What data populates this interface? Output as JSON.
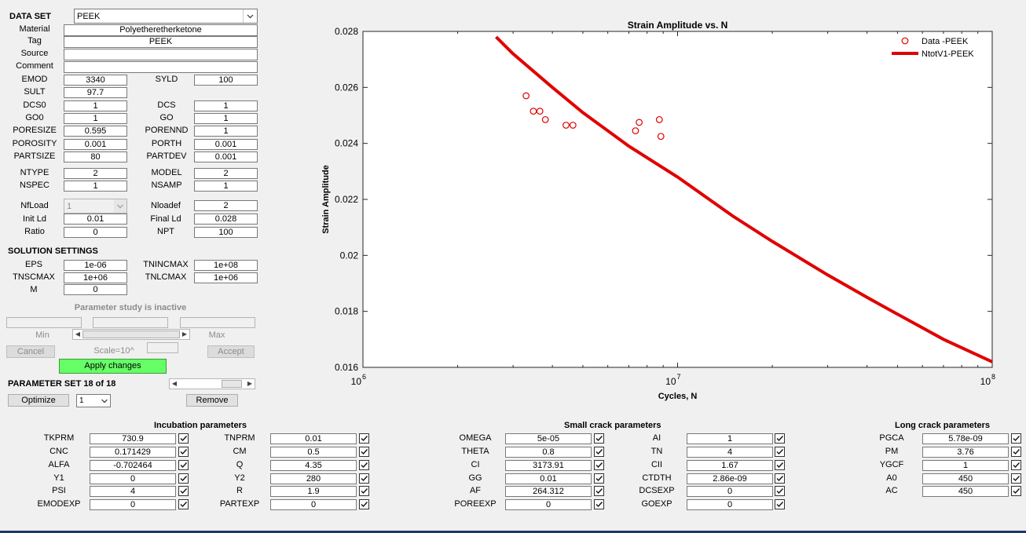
{
  "dataset": {
    "label": "DATA SET",
    "value": "PEEK"
  },
  "material": {
    "rows": [
      {
        "label": "Material",
        "value": "Polyetheretherketone"
      },
      {
        "label": "Tag",
        "value": "PEEK"
      },
      {
        "label": "Source",
        "value": ""
      },
      {
        "label": "Comment",
        "value": ""
      }
    ]
  },
  "props": {
    "left": [
      {
        "label": "EMOD",
        "value": "3340"
      },
      {
        "label": "SULT",
        "value": "97.7"
      },
      {
        "label": "DCS0",
        "value": "1"
      },
      {
        "label": "GO0",
        "value": "1"
      },
      {
        "label": "PORESIZE",
        "value": "0.595"
      },
      {
        "label": "POROSITY",
        "value": "0.001"
      },
      {
        "label": "PARTSIZE",
        "value": "80"
      },
      {
        "label": "NTYPE",
        "value": "2"
      },
      {
        "label": "NSPEC",
        "value": "1"
      }
    ],
    "right": [
      {
        "label": "SYLD",
        "value": "100"
      },
      {
        "label": "DCS",
        "value": "1"
      },
      {
        "label": "GO",
        "value": "1"
      },
      {
        "label": "PORENND",
        "value": "1"
      },
      {
        "label": "PORTH",
        "value": "0.001"
      },
      {
        "label": "PARTDEV",
        "value": "0.001"
      },
      {
        "label": "MODEL",
        "value": "2"
      },
      {
        "label": "NSAMP",
        "value": "1"
      }
    ]
  },
  "load": {
    "nfload_label": "NfLoad",
    "nfload_value": "1",
    "nloadef_label": "Nloadef",
    "nloadef_value": "2",
    "initld_label": "Init Ld",
    "initld_value": "0.01",
    "finalld_label": "Final Ld",
    "finalld_value": "0.028",
    "ratio_label": "Ratio",
    "ratio_value": "0",
    "npt_label": "NPT",
    "npt_value": "100"
  },
  "solution": {
    "title": "SOLUTION SETTINGS",
    "eps_label": "EPS",
    "eps_value": "1e-06",
    "tnincmax_label": "TNINCMAX",
    "tnincmax_value": "1e+08",
    "tnscmax_label": "TNSCMAX",
    "tnscmax_value": "1e+06",
    "tnlcmax_label": "TNLCMAX",
    "tnlcmax_value": "1e+06",
    "m_label": "M",
    "m_value": "0"
  },
  "param_study": {
    "status": "Parameter study is inactive",
    "min_label": "Min",
    "max_label": "Max",
    "cancel": "Cancel",
    "scale": "Scale=10^",
    "accept": "Accept",
    "apply": "Apply changes"
  },
  "param_set": {
    "title": "PARAMETER SET 18 of 18",
    "optimize": "Optimize",
    "select_value": "1",
    "remove": "Remove"
  },
  "incubation": {
    "title": "Incubation parameters",
    "left": [
      {
        "label": "TKPRM",
        "value": "730.9"
      },
      {
        "label": "CNC",
        "value": "0.171429"
      },
      {
        "label": "ALFA",
        "value": "-0.702464"
      },
      {
        "label": "Y1",
        "value": "0"
      },
      {
        "label": "PSI",
        "value": "4"
      },
      {
        "label": "EMODEXP",
        "value": "0"
      }
    ],
    "right": [
      {
        "label": "TNPRM",
        "value": "0.01"
      },
      {
        "label": "CM",
        "value": "0.5"
      },
      {
        "label": "Q",
        "value": "4.35"
      },
      {
        "label": "Y2",
        "value": "280"
      },
      {
        "label": "R",
        "value": "1.9"
      },
      {
        "label": "PARTEXP",
        "value": "0"
      }
    ]
  },
  "small_crack": {
    "title": "Small crack parameters",
    "left": [
      {
        "label": "OMEGA",
        "value": "5e-05"
      },
      {
        "label": "THETA",
        "value": "0.8"
      },
      {
        "label": "CI",
        "value": "3173.91"
      },
      {
        "label": "GG",
        "value": "0.01"
      },
      {
        "label": "AF",
        "value": "264.312"
      },
      {
        "label": "POREEXP",
        "value": "0"
      }
    ],
    "right": [
      {
        "label": "AI",
        "value": "1"
      },
      {
        "label": "TN",
        "value": "4"
      },
      {
        "label": "CII",
        "value": "1.67"
      },
      {
        "label": "CTDTH",
        "value": "2.86e-09"
      },
      {
        "label": "DCSEXP",
        "value": "0"
      },
      {
        "label": "GOEXP",
        "value": "0"
      }
    ]
  },
  "long_crack": {
    "title": "Long crack parameters",
    "rows": [
      {
        "label": "PGCA",
        "value": "5.78e-09"
      },
      {
        "label": "PM",
        "value": "3.76"
      },
      {
        "label": "YGCF",
        "value": "1"
      },
      {
        "label": "A0",
        "value": "450"
      },
      {
        "label": "AC",
        "value": "450"
      }
    ]
  },
  "chart_data": {
    "type": "scatter",
    "title": "Strain Amplitude vs. N",
    "xlabel": "Cycles, N",
    "ylabel": "Strain Amplitude",
    "xscale": "log",
    "xlim": [
      1000000,
      100000000
    ],
    "ylim": [
      0.016,
      0.028
    ],
    "xticks": [
      {
        "base": "10",
        "exp": "6",
        "v": 1000000
      },
      {
        "base": "10",
        "exp": "7",
        "v": 10000000
      },
      {
        "base": "10",
        "exp": "8",
        "v": 100000000
      }
    ],
    "yticks": [
      "0.016",
      "0.018",
      "0.02",
      "0.022",
      "0.024",
      "0.026",
      "0.028"
    ],
    "legend_position": "top-right",
    "series": [
      {
        "name": "Data -PEEK",
        "kind": "markers",
        "color": "#e00000",
        "points": [
          [
            3300000,
            0.0257
          ],
          [
            3480000,
            0.02515
          ],
          [
            3650000,
            0.02515
          ],
          [
            3800000,
            0.02485
          ],
          [
            4420000,
            0.02465
          ],
          [
            4650000,
            0.02465
          ],
          [
            7350000,
            0.02445
          ],
          [
            7550000,
            0.02475
          ],
          [
            8750000,
            0.02485
          ],
          [
            8850000,
            0.02425
          ]
        ]
      },
      {
        "name": "NtotV1-PEEK",
        "kind": "line",
        "color": "#e00000",
        "points": [
          [
            2650000,
            0.0278
          ],
          [
            3000000,
            0.0272
          ],
          [
            4000000,
            0.026
          ],
          [
            5000000,
            0.0251
          ],
          [
            7000000,
            0.0239
          ],
          [
            10000000,
            0.0228
          ],
          [
            15000000,
            0.0214
          ],
          [
            20000000,
            0.0205
          ],
          [
            30000000,
            0.0193
          ],
          [
            40000000,
            0.0185
          ],
          [
            50000000,
            0.0179
          ],
          [
            70000000,
            0.017
          ],
          [
            100000000,
            0.0162
          ]
        ]
      }
    ]
  },
  "colors": {
    "accent_green": "#66ff66",
    "series_red": "#e00000"
  }
}
